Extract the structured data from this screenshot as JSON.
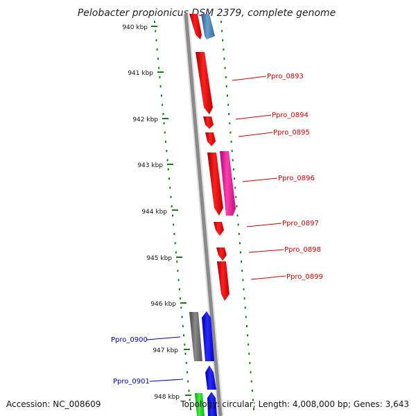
{
  "title": "Pelobacter propionicus DSM 2379, complete genome",
  "accession": "Accession: NC_008609",
  "topology": "Topology: circular; Length: 4,008,000 bp; Genes: 3,643",
  "scale_unit": "kbp",
  "ticks": [
    940,
    941,
    942,
    943,
    944,
    945,
    946,
    947,
    948
  ],
  "colors": {
    "backbone": "#8a8a8a",
    "tick": "#1a7a1a",
    "red_gene": "#ee1111",
    "magenta_gene": "#ee1199",
    "blue_gene": "#1111ee",
    "steel_gene": "#4a7fb5",
    "gray_gene": "#707070",
    "green_gene": "#22cc22",
    "red_label": "#cc0000",
    "blue_label": "#0000aa"
  },
  "labels": [
    {
      "id": "Ppro_0893",
      "text": "Ppro_0893",
      "color": "red"
    },
    {
      "id": "Ppro_0894",
      "text": "Ppro_0894",
      "color": "red"
    },
    {
      "id": "Ppro_0895",
      "text": "Ppro_0895",
      "color": "red"
    },
    {
      "id": "Ppro_0896",
      "text": "Ppro_0896",
      "color": "red"
    },
    {
      "id": "Ppro_0897",
      "text": "Ppro_0897",
      "color": "red"
    },
    {
      "id": "Ppro_0898",
      "text": "Ppro_0898",
      "color": "red"
    },
    {
      "id": "Ppro_0899",
      "text": "Ppro_0899",
      "color": "red"
    },
    {
      "id": "Ppro_0900",
      "text": "Ppro_0900",
      "color": "blue"
    },
    {
      "id": "Ppro_0901",
      "text": "Ppro_0901",
      "color": "blue"
    }
  ]
}
